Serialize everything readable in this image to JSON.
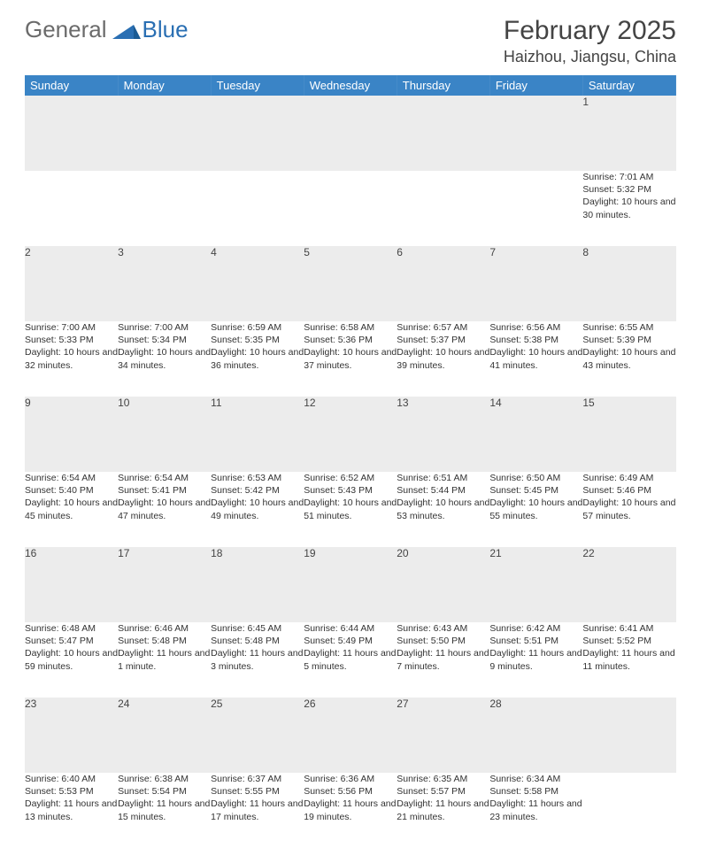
{
  "logo": {
    "general": "General",
    "blue": "Blue"
  },
  "title": "February 2025",
  "location": "Haizhou, Jiangsu, China",
  "colors": {
    "header_bg": "#3a84c6",
    "header_fg": "#ffffff",
    "daynum_bg": "#ececec",
    "border": "#bfbfbf",
    "text": "#333333",
    "logo_gray": "#6b6b6b",
    "logo_blue": "#2a6fb3"
  },
  "weekdays": [
    "Sunday",
    "Monday",
    "Tuesday",
    "Wednesday",
    "Thursday",
    "Friday",
    "Saturday"
  ],
  "weeks": [
    [
      {
        "n": "",
        "lines": []
      },
      {
        "n": "",
        "lines": []
      },
      {
        "n": "",
        "lines": []
      },
      {
        "n": "",
        "lines": []
      },
      {
        "n": "",
        "lines": []
      },
      {
        "n": "",
        "lines": []
      },
      {
        "n": "1",
        "lines": [
          "Sunrise: 7:01 AM",
          "Sunset: 5:32 PM",
          "Daylight: 10 hours and 30 minutes."
        ]
      }
    ],
    [
      {
        "n": "2",
        "lines": [
          "Sunrise: 7:00 AM",
          "Sunset: 5:33 PM",
          "Daylight: 10 hours and 32 minutes."
        ]
      },
      {
        "n": "3",
        "lines": [
          "Sunrise: 7:00 AM",
          "Sunset: 5:34 PM",
          "Daylight: 10 hours and 34 minutes."
        ]
      },
      {
        "n": "4",
        "lines": [
          "Sunrise: 6:59 AM",
          "Sunset: 5:35 PM",
          "Daylight: 10 hours and 36 minutes."
        ]
      },
      {
        "n": "5",
        "lines": [
          "Sunrise: 6:58 AM",
          "Sunset: 5:36 PM",
          "Daylight: 10 hours and 37 minutes."
        ]
      },
      {
        "n": "6",
        "lines": [
          "Sunrise: 6:57 AM",
          "Sunset: 5:37 PM",
          "Daylight: 10 hours and 39 minutes."
        ]
      },
      {
        "n": "7",
        "lines": [
          "Sunrise: 6:56 AM",
          "Sunset: 5:38 PM",
          "Daylight: 10 hours and 41 minutes."
        ]
      },
      {
        "n": "8",
        "lines": [
          "Sunrise: 6:55 AM",
          "Sunset: 5:39 PM",
          "Daylight: 10 hours and 43 minutes."
        ]
      }
    ],
    [
      {
        "n": "9",
        "lines": [
          "Sunrise: 6:54 AM",
          "Sunset: 5:40 PM",
          "Daylight: 10 hours and 45 minutes."
        ]
      },
      {
        "n": "10",
        "lines": [
          "Sunrise: 6:54 AM",
          "Sunset: 5:41 PM",
          "Daylight: 10 hours and 47 minutes."
        ]
      },
      {
        "n": "11",
        "lines": [
          "Sunrise: 6:53 AM",
          "Sunset: 5:42 PM",
          "Daylight: 10 hours and 49 minutes."
        ]
      },
      {
        "n": "12",
        "lines": [
          "Sunrise: 6:52 AM",
          "Sunset: 5:43 PM",
          "Daylight: 10 hours and 51 minutes."
        ]
      },
      {
        "n": "13",
        "lines": [
          "Sunrise: 6:51 AM",
          "Sunset: 5:44 PM",
          "Daylight: 10 hours and 53 minutes."
        ]
      },
      {
        "n": "14",
        "lines": [
          "Sunrise: 6:50 AM",
          "Sunset: 5:45 PM",
          "Daylight: 10 hours and 55 minutes."
        ]
      },
      {
        "n": "15",
        "lines": [
          "Sunrise: 6:49 AM",
          "Sunset: 5:46 PM",
          "Daylight: 10 hours and 57 minutes."
        ]
      }
    ],
    [
      {
        "n": "16",
        "lines": [
          "Sunrise: 6:48 AM",
          "Sunset: 5:47 PM",
          "Daylight: 10 hours and 59 minutes."
        ]
      },
      {
        "n": "17",
        "lines": [
          "Sunrise: 6:46 AM",
          "Sunset: 5:48 PM",
          "Daylight: 11 hours and 1 minute."
        ]
      },
      {
        "n": "18",
        "lines": [
          "Sunrise: 6:45 AM",
          "Sunset: 5:48 PM",
          "Daylight: 11 hours and 3 minutes."
        ]
      },
      {
        "n": "19",
        "lines": [
          "Sunrise: 6:44 AM",
          "Sunset: 5:49 PM",
          "Daylight: 11 hours and 5 minutes."
        ]
      },
      {
        "n": "20",
        "lines": [
          "Sunrise: 6:43 AM",
          "Sunset: 5:50 PM",
          "Daylight: 11 hours and 7 minutes."
        ]
      },
      {
        "n": "21",
        "lines": [
          "Sunrise: 6:42 AM",
          "Sunset: 5:51 PM",
          "Daylight: 11 hours and 9 minutes."
        ]
      },
      {
        "n": "22",
        "lines": [
          "Sunrise: 6:41 AM",
          "Sunset: 5:52 PM",
          "Daylight: 11 hours and 11 minutes."
        ]
      }
    ],
    [
      {
        "n": "23",
        "lines": [
          "Sunrise: 6:40 AM",
          "Sunset: 5:53 PM",
          "Daylight: 11 hours and 13 minutes."
        ]
      },
      {
        "n": "24",
        "lines": [
          "Sunrise: 6:38 AM",
          "Sunset: 5:54 PM",
          "Daylight: 11 hours and 15 minutes."
        ]
      },
      {
        "n": "25",
        "lines": [
          "Sunrise: 6:37 AM",
          "Sunset: 5:55 PM",
          "Daylight: 11 hours and 17 minutes."
        ]
      },
      {
        "n": "26",
        "lines": [
          "Sunrise: 6:36 AM",
          "Sunset: 5:56 PM",
          "Daylight: 11 hours and 19 minutes."
        ]
      },
      {
        "n": "27",
        "lines": [
          "Sunrise: 6:35 AM",
          "Sunset: 5:57 PM",
          "Daylight: 11 hours and 21 minutes."
        ]
      },
      {
        "n": "28",
        "lines": [
          "Sunrise: 6:34 AM",
          "Sunset: 5:58 PM",
          "Daylight: 11 hours and 23 minutes."
        ]
      },
      {
        "n": "",
        "lines": []
      }
    ]
  ]
}
